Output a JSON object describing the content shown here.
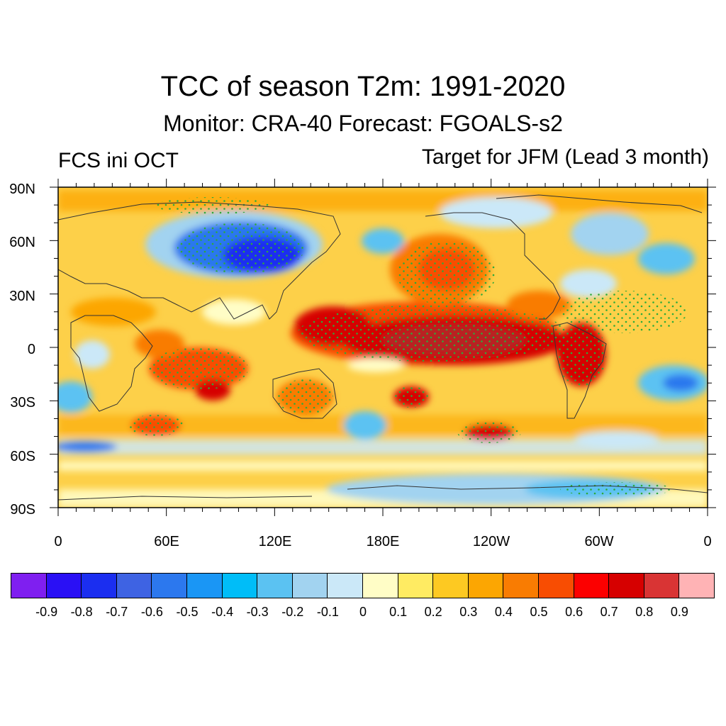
{
  "title": "TCC of season T2m: 1991-2020",
  "subtitle": "Monitor: CRA-40   Forecast: FGOALS-s2",
  "left_label": "FCS ini OCT",
  "right_label": "Target for JFM (Lead 3 month)",
  "map": {
    "lat_ticks": [
      "90N",
      "60N",
      "30N",
      "0",
      "30S",
      "60S",
      "90S"
    ],
    "lon_ticks": [
      "0",
      "60E",
      "120E",
      "180E",
      "120W",
      "60W",
      "0"
    ]
  },
  "colorbar": {
    "colors": [
      "#7f1ff0",
      "#2a10f5",
      "#1b2ef0",
      "#3e63e3",
      "#2c78ee",
      "#1a96f5",
      "#00bdf8",
      "#5bc2f2",
      "#a2d3f0",
      "#cbe8f8",
      "#fffdc6",
      "#ffeb62",
      "#fdc922",
      "#fca602",
      "#f97c02",
      "#f84d02",
      "#fc0000",
      "#d60000",
      "#d93434",
      "#ffb3b5"
    ],
    "labels": [
      "-0.9",
      "-0.8",
      "-0.7",
      "-0.6",
      "-0.5",
      "-0.4",
      "-0.3",
      "-0.2",
      "-0.1",
      "0",
      "0.1",
      "0.2",
      "0.3",
      "0.4",
      "0.5",
      "0.6",
      "0.7",
      "0.8",
      "0.9"
    ]
  }
}
